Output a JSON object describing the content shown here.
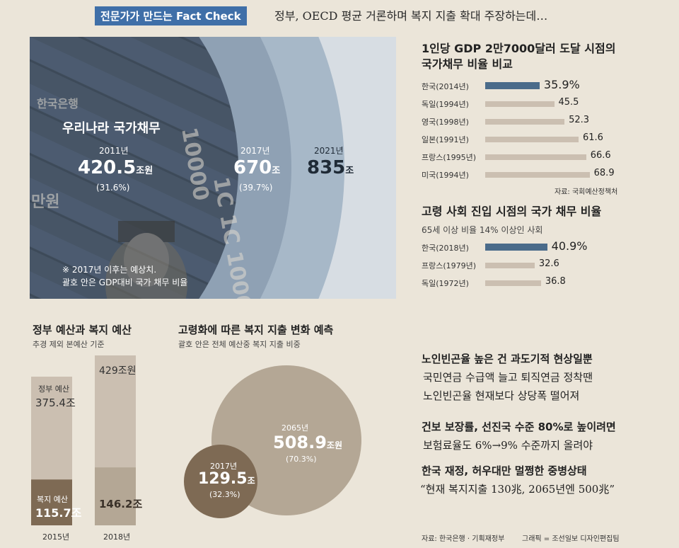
{
  "header": {
    "badge": "전문가가 만드는 Fact Check",
    "headline": "정부, OECD 평균 거론하며 복지 지출 확대 주장하는데…"
  },
  "debt": {
    "title": "우리나라 국가채무",
    "note_line1": "※ 2017년 이후는 예상치.",
    "note_line2": "괄호 안은 GDP대비 국가 채무 비율",
    "items": [
      {
        "year": "2011년",
        "value": "420.5",
        "unit": "조원",
        "ratio": "(31.6%)"
      },
      {
        "year": "2017년",
        "value": "670",
        "unit": "조",
        "ratio": "(39.7%)"
      },
      {
        "year": "2021년",
        "value": "835",
        "unit": "조",
        "ratio": ""
      }
    ]
  },
  "compare1": {
    "title_line1": "1인당 GDP 2만7000달러 도달 시점의",
    "title_line2": "국가채무 비율 비교",
    "source": "자료: 국회예산정책처"
  },
  "compare2": {
    "title": "고령 사회 진입 시점의 국가 채무 비율",
    "subtitle": "65세 이상 비율 14% 이상인 사회"
  },
  "budget": {
    "title": "정부 예산과 복지 예산",
    "subtitle": "추경 제외 본예산 기준",
    "gov_label": "정부 예산",
    "welfare_label": "복지 예산",
    "total_2015": "375.4조",
    "welfare_2015": "115.7조",
    "total_2018": "429조원",
    "welfare_2018": "146.2조",
    "year_2015": "2015년",
    "year_2018": "2018년"
  },
  "welfare": {
    "title": "고령화에 따른 복지 지출 변화 예측",
    "subtitle": "괄호 안은 전체 예산중 복지 지출 비중",
    "small": {
      "year": "2017년",
      "value": "129.5",
      "unit": "조",
      "ratio": "(32.3%)"
    },
    "big": {
      "year": "2065년",
      "value": "508.9",
      "unit": "조원",
      "ratio": "(70.3%)"
    }
  },
  "text": {
    "h1": "노인빈곤율 높은 건 과도기적 현상일뿐",
    "p1a": "국민연금 수급액 늘고 퇴직연금 정착땐",
    "p1b": "노인빈곤율 현재보다 상당폭 떨어져",
    "h2": "건보 보장률, 선진국 수준 80%로 높이려면",
    "p2": "보험료율도 6%→9% 수준까지 올려야",
    "h3": "한국 재정, 허우대만 멀쩡한 중병상태",
    "p3": "“현재 복지지출 130兆, 2065년엔 500兆”"
  },
  "footer": {
    "source": "자료: 한국은행 · 기획재정부",
    "credit": "그래픽 = 조선일보 디자인편집팀"
  },
  "colors": {
    "accent_blue": "#3f6fa8",
    "bar_highlight": "#4a6b8a",
    "bar_other": "#cbbfb1",
    "bubble_dark": "#7e6a54",
    "bubble_light": "#b4a795"
  },
  "chart_data": [
    {
      "type": "bar",
      "orientation": "horizontal",
      "title": "1인당 GDP 2만7000달러 도달 시점의 국가채무 비율 비교",
      "categories": [
        "한국(2014년)",
        "독일(1994년)",
        "영국(1998년)",
        "일본(1991년)",
        "프랑스(1995년)",
        "미국(1994년)"
      ],
      "values": [
        35.9,
        45.5,
        52.3,
        61.6,
        66.6,
        68.9
      ],
      "highlight_index": 0,
      "xlim": [
        0,
        70
      ]
    },
    {
      "type": "bar",
      "orientation": "horizontal",
      "title": "고령 사회 진입 시점의 국가 채무 비율",
      "categories": [
        "한국(2018년)",
        "프랑스(1979년)",
        "독일(1972년)"
      ],
      "values": [
        40.9,
        32.6,
        36.8
      ],
      "highlight_index": 0,
      "xlim": [
        0,
        70
      ]
    },
    {
      "type": "bar",
      "title": "정부 예산과 복지 예산",
      "categories": [
        "2015년",
        "2018년"
      ],
      "series": [
        {
          "name": "정부 예산",
          "values": [
            375.4,
            429
          ]
        },
        {
          "name": "복지 예산",
          "values": [
            115.7,
            146.2
          ]
        }
      ],
      "ylim": [
        0,
        429
      ]
    },
    {
      "type": "scatter",
      "title": "고령화에 따른 복지 지출 변화 예측",
      "categories": [
        "2017년",
        "2065년"
      ],
      "values": [
        129.5,
        508.9
      ],
      "shares": [
        32.3,
        70.3
      ]
    },
    {
      "type": "area",
      "title": "우리나라 국가채무",
      "categories": [
        "2011년",
        "2017년",
        "2021년"
      ],
      "values": [
        420.5,
        670,
        835
      ],
      "shares": [
        31.6,
        39.7,
        null
      ]
    }
  ]
}
